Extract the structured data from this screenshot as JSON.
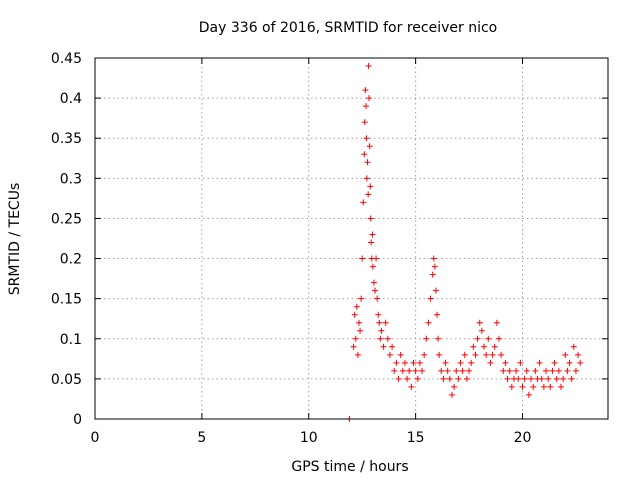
{
  "chart_data": {
    "type": "scatter",
    "title": "Day 336 of 2016, SRMTID for receiver nico",
    "xlabel": "GPS time / hours",
    "ylabel": "SRMTID / TECUs",
    "xlim": [
      0,
      24
    ],
    "ylim": [
      0,
      0.45
    ],
    "x_ticks": [
      0,
      5,
      10,
      15,
      20
    ],
    "x_tick_labels": [
      "0",
      "5",
      "10",
      "15",
      "20"
    ],
    "y_ticks": [
      0,
      0.05,
      0.1,
      0.15,
      0.2,
      0.25,
      0.3,
      0.35,
      0.4,
      0.45
    ],
    "y_tick_labels": [
      "0",
      "0.05",
      "0.1",
      "0.15",
      "0.2",
      "0.25",
      "0.3",
      "0.35",
      "0.4",
      "0.45"
    ],
    "grid": true,
    "series": [
      {
        "name": "SRMTID",
        "color": "#ff0000",
        "marker": "plus",
        "x": [
          11.9,
          12.1,
          12.15,
          12.2,
          12.25,
          12.3,
          12.35,
          12.4,
          12.45,
          12.5,
          12.55,
          12.6,
          12.62,
          12.65,
          12.68,
          12.7,
          12.72,
          12.75,
          12.78,
          12.8,
          12.82,
          12.85,
          12.88,
          12.9,
          12.92,
          12.95,
          12.98,
          13.0,
          13.05,
          13.1,
          13.15,
          13.2,
          13.25,
          13.3,
          13.35,
          13.4,
          13.5,
          13.6,
          13.7,
          13.8,
          13.9,
          14.0,
          14.1,
          14.2,
          14.3,
          14.4,
          14.5,
          14.6,
          14.7,
          14.8,
          14.9,
          15.0,
          15.1,
          15.2,
          15.3,
          15.4,
          15.5,
          15.6,
          15.7,
          15.8,
          15.85,
          15.9,
          15.95,
          16.0,
          16.05,
          16.1,
          16.2,
          16.3,
          16.4,
          16.5,
          16.6,
          16.7,
          16.8,
          16.9,
          17.0,
          17.1,
          17.2,
          17.3,
          17.4,
          17.5,
          17.6,
          17.7,
          17.8,
          17.9,
          18.0,
          18.1,
          18.2,
          18.3,
          18.4,
          18.5,
          18.6,
          18.7,
          18.8,
          18.9,
          19.0,
          19.1,
          19.2,
          19.3,
          19.4,
          19.5,
          19.6,
          19.7,
          19.8,
          19.9,
          20.0,
          20.1,
          20.2,
          20.3,
          20.4,
          20.5,
          20.6,
          20.7,
          20.8,
          20.9,
          21.0,
          21.1,
          21.2,
          21.3,
          21.4,
          21.5,
          21.6,
          21.7,
          21.8,
          21.9,
          22.0,
          22.1,
          22.2,
          22.3,
          22.4,
          22.5,
          22.6,
          22.7
        ],
        "y": [
          0.0,
          0.09,
          0.13,
          0.1,
          0.14,
          0.08,
          0.12,
          0.11,
          0.15,
          0.2,
          0.27,
          0.33,
          0.37,
          0.41,
          0.39,
          0.35,
          0.3,
          0.32,
          0.28,
          0.44,
          0.4,
          0.34,
          0.29,
          0.25,
          0.22,
          0.2,
          0.23,
          0.19,
          0.17,
          0.16,
          0.2,
          0.15,
          0.13,
          0.12,
          0.1,
          0.11,
          0.09,
          0.12,
          0.1,
          0.08,
          0.09,
          0.06,
          0.07,
          0.05,
          0.08,
          0.06,
          0.07,
          0.05,
          0.06,
          0.04,
          0.07,
          0.06,
          0.05,
          0.07,
          0.06,
          0.08,
          0.1,
          0.12,
          0.15,
          0.18,
          0.2,
          0.19,
          0.16,
          0.13,
          0.1,
          0.08,
          0.06,
          0.05,
          0.07,
          0.06,
          0.05,
          0.03,
          0.04,
          0.06,
          0.05,
          0.07,
          0.06,
          0.08,
          0.05,
          0.06,
          0.07,
          0.09,
          0.08,
          0.1,
          0.12,
          0.11,
          0.09,
          0.08,
          0.1,
          0.07,
          0.08,
          0.09,
          0.12,
          0.1,
          0.08,
          0.06,
          0.07,
          0.05,
          0.06,
          0.04,
          0.05,
          0.06,
          0.05,
          0.07,
          0.04,
          0.05,
          0.06,
          0.03,
          0.05,
          0.04,
          0.06,
          0.05,
          0.07,
          0.05,
          0.04,
          0.06,
          0.05,
          0.04,
          0.06,
          0.07,
          0.05,
          0.06,
          0.04,
          0.05,
          0.08,
          0.06,
          0.07,
          0.05,
          0.09,
          0.06,
          0.08,
          0.07
        ]
      }
    ]
  }
}
